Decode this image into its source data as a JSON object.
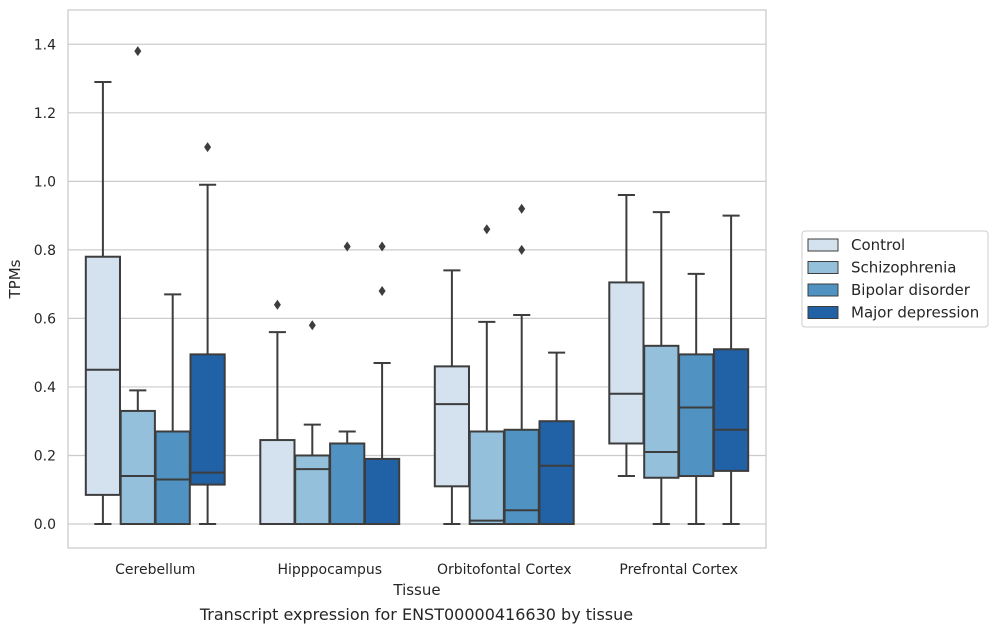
{
  "chart_data": {
    "type": "box",
    "categories": [
      "Cerebellum",
      "Hipppocampus",
      "Orbitofontal Cortex",
      "Prefrontal Cortex"
    ],
    "xlabel": "Tissue",
    "ylabel": "TPMs",
    "ylim": [
      -0.07,
      1.5
    ],
    "yticks": [
      0.0,
      0.2,
      0.4,
      0.6,
      0.8,
      1.0,
      1.2,
      1.4
    ],
    "ytick_labels": [
      "0.0",
      "0.2",
      "0.4",
      "0.6",
      "0.8",
      "1.0",
      "1.2",
      "1.4"
    ],
    "grid": "horizontal",
    "legend_position": "right",
    "series": [
      {
        "name": "Control",
        "color": "#d4e2f0",
        "boxes": [
          {
            "whislo": 0.0,
            "q1": 0.085,
            "med": 0.45,
            "q3": 0.78,
            "whishi": 1.29,
            "fliers": []
          },
          {
            "whislo": 0.0,
            "q1": 0.0,
            "med": 0.0,
            "q3": 0.245,
            "whishi": 0.56,
            "fliers": [
              0.64
            ]
          },
          {
            "whislo": 0.0,
            "q1": 0.11,
            "med": 0.35,
            "q3": 0.46,
            "whishi": 0.74,
            "fliers": []
          },
          {
            "whislo": 0.14,
            "q1": 0.235,
            "med": 0.38,
            "q3": 0.705,
            "whishi": 0.96,
            "fliers": []
          }
        ]
      },
      {
        "name": "Schizophrenia",
        "color": "#95c0db",
        "boxes": [
          {
            "whislo": 0.0,
            "q1": 0.0,
            "med": 0.14,
            "q3": 0.33,
            "whishi": 0.39,
            "fliers": [
              1.38
            ]
          },
          {
            "whislo": 0.0,
            "q1": 0.0,
            "med": 0.16,
            "q3": 0.2,
            "whishi": 0.29,
            "fliers": [
              0.58
            ]
          },
          {
            "whislo": 0.0,
            "q1": 0.0,
            "med": 0.01,
            "q3": 0.27,
            "whishi": 0.59,
            "fliers": [
              0.86
            ]
          },
          {
            "whislo": 0.0,
            "q1": 0.135,
            "med": 0.21,
            "q3": 0.52,
            "whishi": 0.91,
            "fliers": []
          }
        ]
      },
      {
        "name": "Bipolar disorder",
        "color": "#5092c1",
        "boxes": [
          {
            "whislo": 0.0,
            "q1": 0.0,
            "med": 0.13,
            "q3": 0.27,
            "whishi": 0.67,
            "fliers": []
          },
          {
            "whislo": 0.0,
            "q1": 0.0,
            "med": 0.0,
            "q3": 0.235,
            "whishi": 0.27,
            "fliers": [
              0.81
            ]
          },
          {
            "whislo": 0.0,
            "q1": 0.0,
            "med": 0.04,
            "q3": 0.275,
            "whishi": 0.61,
            "fliers": [
              0.8,
              0.92
            ]
          },
          {
            "whislo": 0.0,
            "q1": 0.14,
            "med": 0.34,
            "q3": 0.495,
            "whishi": 0.73,
            "fliers": []
          }
        ]
      },
      {
        "name": "Major depression",
        "color": "#2161a5",
        "boxes": [
          {
            "whislo": 0.0,
            "q1": 0.115,
            "med": 0.15,
            "q3": 0.495,
            "whishi": 0.99,
            "fliers": [
              1.1
            ]
          },
          {
            "whislo": 0.0,
            "q1": 0.0,
            "med": 0.0,
            "q3": 0.19,
            "whishi": 0.47,
            "fliers": [
              0.68,
              0.81
            ]
          },
          {
            "whislo": 0.0,
            "q1": 0.0,
            "med": 0.17,
            "q3": 0.3,
            "whishi": 0.5,
            "fliers": []
          },
          {
            "whislo": 0.0,
            "q1": 0.155,
            "med": 0.275,
            "q3": 0.51,
            "whishi": 0.9,
            "fliers": []
          }
        ]
      }
    ]
  },
  "caption": "Transcript expression for ENST00000416630 by tissue"
}
